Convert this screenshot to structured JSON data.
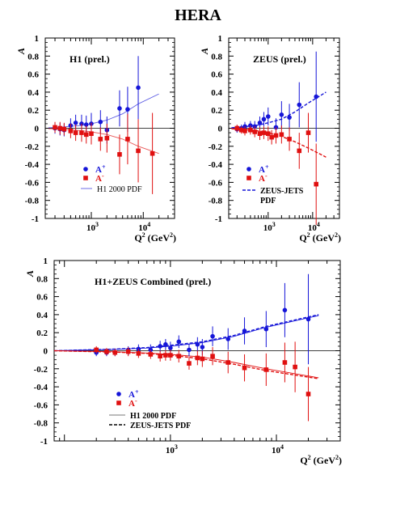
{
  "title": "HERA",
  "colors": {
    "a_plus": "#1515d8",
    "a_minus": "#e01010",
    "axis": "#000000",
    "zero": "#000000"
  },
  "charts": [
    {
      "id": "h1",
      "label": "H1 (prel.)",
      "ylabel": "A",
      "xlabel_base": "Q",
      "xlabel_sup": "2",
      "xlabel_unit": " (GeV",
      "xlabel_close": ")",
      "yticks": [
        "1",
        "0.8",
        "0.6",
        "0.4",
        "0.2",
        "0",
        "-0.2",
        "-0.4",
        "-0.6",
        "-0.8",
        "-1"
      ],
      "xtick_base": "10",
      "xtick_exps": [
        "3",
        "4"
      ],
      "legend": {
        "a_plus_base": "A",
        "a_plus_sup": "+",
        "a_minus_base": "A",
        "a_minus_sup": "-",
        "pdf1": "H1 2000 PDF"
      }
    },
    {
      "id": "zeus",
      "label": "ZEUS (prel.)",
      "ylabel": "A",
      "xlabel_base": "Q",
      "xlabel_sup": "2",
      "xlabel_unit": " (GeV",
      "xlabel_close": ")",
      "yticks": [
        "1",
        "0.8",
        "0.6",
        "0.4",
        "0.2",
        "0",
        "-0.2",
        "-0.4",
        "-0.6",
        "-0.8",
        "-1"
      ],
      "xtick_base": "10",
      "xtick_exps": [
        "3",
        "4"
      ],
      "legend": {
        "a_plus_base": "A",
        "a_plus_sup": "+",
        "a_minus_base": "A",
        "a_minus_sup": "-",
        "pdf1": "ZEUS-JETS",
        "pdf1b": "PDF"
      }
    },
    {
      "id": "combined",
      "label": "H1+ZEUS Combined (prel.)",
      "ylabel": "A",
      "xlabel_base": "Q",
      "xlabel_sup": "2",
      "xlabel_unit": " (GeV",
      "xlabel_close": ")",
      "yticks": [
        "1",
        "0.8",
        "0.6",
        "0.4",
        "0.2",
        "0",
        "-0.2",
        "-0.4",
        "-0.6",
        "-0.8",
        "-1"
      ],
      "xtick_base": "10",
      "xtick_exps": [
        "3",
        "4"
      ],
      "legend": {
        "a_plus_base": "A",
        "a_plus_sup": "+",
        "a_minus_base": "A",
        "a_minus_sup": "-",
        "pdf1": "H1 2000 PDF",
        "pdf2": "ZEUS-JETS PDF"
      }
    }
  ],
  "chart_data": [
    {
      "type": "scatter",
      "title": "H1 (prel.)",
      "xlabel": "Q² (GeV²)",
      "ylabel": "A",
      "xscale": "log",
      "xlim": [
        130,
        40000
      ],
      "ylim": [
        -1,
        1
      ],
      "series": [
        {
          "name": "A+",
          "points": [
            {
              "x": 200,
              "y": 0.0,
              "e": 0.06
            },
            {
              "x": 250,
              "y": -0.01,
              "e": 0.07
            },
            {
              "x": 300,
              "y": -0.02,
              "e": 0.07
            },
            {
              "x": 400,
              "y": 0.03,
              "e": 0.08
            },
            {
              "x": 500,
              "y": 0.06,
              "e": 0.09
            },
            {
              "x": 650,
              "y": 0.05,
              "e": 0.1
            },
            {
              "x": 800,
              "y": 0.04,
              "e": 0.1
            },
            {
              "x": 1000,
              "y": 0.05,
              "e": 0.12
            },
            {
              "x": 1500,
              "y": 0.07,
              "e": 0.13
            },
            {
              "x": 2000,
              "y": -0.02,
              "e": 0.15
            },
            {
              "x": 3500,
              "y": 0.22,
              "e": 0.2
            },
            {
              "x": 5000,
              "y": 0.21,
              "e": 0.25
            },
            {
              "x": 8000,
              "y": 0.45,
              "e": 0.35
            }
          ]
        },
        {
          "name": "A-",
          "points": [
            {
              "x": 200,
              "y": 0.01,
              "e": 0.06
            },
            {
              "x": 250,
              "y": 0.0,
              "e": 0.07
            },
            {
              "x": 300,
              "y": -0.01,
              "e": 0.07
            },
            {
              "x": 400,
              "y": -0.03,
              "e": 0.08
            },
            {
              "x": 500,
              "y": -0.05,
              "e": 0.09
            },
            {
              "x": 650,
              "y": -0.05,
              "e": 0.1
            },
            {
              "x": 800,
              "y": -0.07,
              "e": 0.1
            },
            {
              "x": 1000,
              "y": -0.06,
              "e": 0.12
            },
            {
              "x": 1500,
              "y": -0.12,
              "e": 0.13
            },
            {
              "x": 2000,
              "y": -0.11,
              "e": 0.16
            },
            {
              "x": 3500,
              "y": -0.29,
              "e": 0.22
            },
            {
              "x": 5000,
              "y": -0.12,
              "e": 0.28
            },
            {
              "x": 8000,
              "y": -0.25,
              "e": 0.35
            },
            {
              "x": 15000,
              "y": -0.28,
              "e": 0.45
            }
          ]
        },
        {
          "name": "H1 2000 PDF",
          "curve": [
            {
              "x": 150,
              "y": 0.005
            },
            {
              "x": 300,
              "y": 0.015
            },
            {
              "x": 600,
              "y": 0.03
            },
            {
              "x": 1000,
              "y": 0.05
            },
            {
              "x": 2000,
              "y": 0.09
            },
            {
              "x": 4000,
              "y": 0.16
            },
            {
              "x": 8000,
              "y": 0.27
            },
            {
              "x": 20000,
              "y": 0.38
            }
          ]
        },
        {
          "name": "H1 2000 PDF (A-)",
          "curve": [
            {
              "x": 150,
              "y": -0.005
            },
            {
              "x": 300,
              "y": -0.012
            },
            {
              "x": 600,
              "y": -0.025
            },
            {
              "x": 1000,
              "y": -0.04
            },
            {
              "x": 2000,
              "y": -0.07
            },
            {
              "x": 4000,
              "y": -0.12
            },
            {
              "x": 8000,
              "y": -0.2
            },
            {
              "x": 20000,
              "y": -0.28
            }
          ]
        }
      ]
    },
    {
      "type": "scatter",
      "title": "ZEUS (prel.)",
      "xlabel": "Q² (GeV²)",
      "ylabel": "A",
      "xscale": "log",
      "xlim": [
        130,
        40000
      ],
      "ylim": [
        -1,
        1
      ],
      "series": [
        {
          "name": "A+",
          "points": [
            {
              "x": 200,
              "y": -0.01,
              "e": 0.04
            },
            {
              "x": 250,
              "y": 0.0,
              "e": 0.04
            },
            {
              "x": 300,
              "y": 0.02,
              "e": 0.05
            },
            {
              "x": 400,
              "y": 0.03,
              "e": 0.05
            },
            {
              "x": 500,
              "y": 0.02,
              "e": 0.06
            },
            {
              "x": 650,
              "y": 0.06,
              "e": 0.07
            },
            {
              "x": 800,
              "y": 0.1,
              "e": 0.08
            },
            {
              "x": 1000,
              "y": 0.13,
              "e": 0.1
            },
            {
              "x": 1500,
              "y": 0.01,
              "e": 0.1
            },
            {
              "x": 2000,
              "y": 0.15,
              "e": 0.15
            },
            {
              "x": 3000,
              "y": 0.12,
              "e": 0.15
            },
            {
              "x": 5000,
              "y": 0.26,
              "e": 0.25
            },
            {
              "x": 12000,
              "y": 0.35,
              "e": 0.5
            }
          ]
        },
        {
          "name": "A-",
          "points": [
            {
              "x": 200,
              "y": 0.0,
              "e": 0.04
            },
            {
              "x": 250,
              "y": -0.02,
              "e": 0.04
            },
            {
              "x": 300,
              "y": -0.03,
              "e": 0.05
            },
            {
              "x": 400,
              "y": -0.02,
              "e": 0.05
            },
            {
              "x": 500,
              "y": -0.04,
              "e": 0.06
            },
            {
              "x": 650,
              "y": -0.06,
              "e": 0.07
            },
            {
              "x": 800,
              "y": -0.05,
              "e": 0.07
            },
            {
              "x": 1000,
              "y": -0.06,
              "e": 0.08
            },
            {
              "x": 1200,
              "y": -0.1,
              "e": 0.08
            },
            {
              "x": 1500,
              "y": -0.08,
              "e": 0.09
            },
            {
              "x": 2000,
              "y": -0.07,
              "e": 0.1
            },
            {
              "x": 3000,
              "y": -0.12,
              "e": 0.13
            },
            {
              "x": 5000,
              "y": -0.25,
              "e": 0.2
            },
            {
              "x": 8000,
              "y": -0.05,
              "e": 0.22
            },
            {
              "x": 12000,
              "y": -0.62,
              "e": 0.45
            }
          ]
        },
        {
          "name": "ZEUS-JETS PDF",
          "curve": [
            {
              "x": 150,
              "y": 0.005
            },
            {
              "x": 300,
              "y": 0.018
            },
            {
              "x": 600,
              "y": 0.035
            },
            {
              "x": 1000,
              "y": 0.06
            },
            {
              "x": 2000,
              "y": 0.1
            },
            {
              "x": 4000,
              "y": 0.18
            },
            {
              "x": 8000,
              "y": 0.28
            },
            {
              "x": 20000,
              "y": 0.4
            }
          ]
        },
        {
          "name": "ZEUS-JETS PDF (A-)",
          "curve": [
            {
              "x": 150,
              "y": -0.005
            },
            {
              "x": 300,
              "y": -0.015
            },
            {
              "x": 600,
              "y": -0.03
            },
            {
              "x": 1000,
              "y": -0.05
            },
            {
              "x": 2000,
              "y": -0.09
            },
            {
              "x": 4000,
              "y": -0.15
            },
            {
              "x": 8000,
              "y": -0.22
            },
            {
              "x": 20000,
              "y": -0.32
            }
          ]
        }
      ]
    },
    {
      "type": "scatter",
      "title": "H1+ZEUS Combined (prel.)",
      "xlabel": "Q² (GeV²)",
      "ylabel": "A",
      "xscale": "log",
      "xlim": [
        80,
        40000
      ],
      "ylim": [
        -1,
        1
      ],
      "series": [
        {
          "name": "A+",
          "points": [
            {
              "x": 200,
              "y": -0.02,
              "e": 0.04
            },
            {
              "x": 250,
              "y": -0.02,
              "e": 0.04
            },
            {
              "x": 300,
              "y": -0.02,
              "e": 0.04
            },
            {
              "x": 400,
              "y": 0.0,
              "e": 0.05
            },
            {
              "x": 500,
              "y": 0.02,
              "e": 0.05
            },
            {
              "x": 650,
              "y": 0.01,
              "e": 0.06
            },
            {
              "x": 800,
              "y": 0.05,
              "e": 0.06
            },
            {
              "x": 900,
              "y": 0.07,
              "e": 0.06
            },
            {
              "x": 1000,
              "y": 0.03,
              "e": 0.07
            },
            {
              "x": 1200,
              "y": 0.1,
              "e": 0.07
            },
            {
              "x": 1500,
              "y": 0.01,
              "e": 0.07
            },
            {
              "x": 1800,
              "y": 0.07,
              "e": 0.08
            },
            {
              "x": 2000,
              "y": 0.04,
              "e": 0.09
            },
            {
              "x": 2500,
              "y": 0.16,
              "e": 0.11
            },
            {
              "x": 3500,
              "y": 0.13,
              "e": 0.12
            },
            {
              "x": 5000,
              "y": 0.22,
              "e": 0.15
            },
            {
              "x": 8000,
              "y": 0.24,
              "e": 0.2
            },
            {
              "x": 12000,
              "y": 0.45,
              "e": 0.3
            },
            {
              "x": 20000,
              "y": 0.35,
              "e": 0.5
            }
          ]
        },
        {
          "name": "A-",
          "points": [
            {
              "x": 200,
              "y": 0.01,
              "e": 0.04
            },
            {
              "x": 250,
              "y": -0.01,
              "e": 0.04
            },
            {
              "x": 300,
              "y": -0.02,
              "e": 0.04
            },
            {
              "x": 400,
              "y": -0.01,
              "e": 0.05
            },
            {
              "x": 500,
              "y": -0.03,
              "e": 0.05
            },
            {
              "x": 650,
              "y": -0.04,
              "e": 0.05
            },
            {
              "x": 800,
              "y": -0.06,
              "e": 0.06
            },
            {
              "x": 900,
              "y": -0.05,
              "e": 0.06
            },
            {
              "x": 1000,
              "y": -0.05,
              "e": 0.06
            },
            {
              "x": 1200,
              "y": -0.06,
              "e": 0.07
            },
            {
              "x": 1500,
              "y": -0.14,
              "e": 0.07
            },
            {
              "x": 1800,
              "y": -0.08,
              "e": 0.08
            },
            {
              "x": 2000,
              "y": -0.09,
              "e": 0.09
            },
            {
              "x": 2500,
              "y": -0.06,
              "e": 0.1
            },
            {
              "x": 3500,
              "y": -0.13,
              "e": 0.12
            },
            {
              "x": 5000,
              "y": -0.19,
              "e": 0.15
            },
            {
              "x": 8000,
              "y": -0.21,
              "e": 0.18
            },
            {
              "x": 12000,
              "y": -0.13,
              "e": 0.22
            },
            {
              "x": 15000,
              "y": -0.18,
              "e": 0.28
            },
            {
              "x": 20000,
              "y": -0.48,
              "e": 0.3
            }
          ]
        },
        {
          "name": "H1 2000 PDF",
          "curve": [
            {
              "x": 80,
              "y": 0.0
            },
            {
              "x": 300,
              "y": 0.015
            },
            {
              "x": 600,
              "y": 0.03
            },
            {
              "x": 1000,
              "y": 0.05
            },
            {
              "x": 2000,
              "y": 0.09
            },
            {
              "x": 4000,
              "y": 0.16
            },
            {
              "x": 8000,
              "y": 0.26
            },
            {
              "x": 25000,
              "y": 0.39
            }
          ]
        },
        {
          "name": "ZEUS-JETS PDF",
          "curve": [
            {
              "x": 80,
              "y": 0.0
            },
            {
              "x": 300,
              "y": 0.018
            },
            {
              "x": 600,
              "y": 0.035
            },
            {
              "x": 1000,
              "y": 0.06
            },
            {
              "x": 2000,
              "y": 0.1
            },
            {
              "x": 4000,
              "y": 0.17
            },
            {
              "x": 8000,
              "y": 0.27
            },
            {
              "x": 25000,
              "y": 0.4
            }
          ]
        },
        {
          "name": "H1 2000 PDF (A-)",
          "curve": [
            {
              "x": 80,
              "y": 0.0
            },
            {
              "x": 300,
              "y": -0.012
            },
            {
              "x": 600,
              "y": -0.025
            },
            {
              "x": 1000,
              "y": -0.04
            },
            {
              "x": 2000,
              "y": -0.07
            },
            {
              "x": 4000,
              "y": -0.13
            },
            {
              "x": 8000,
              "y": -0.2
            },
            {
              "x": 25000,
              "y": -0.3
            }
          ]
        },
        {
          "name": "ZEUS-JETS PDF (A-)",
          "curve": [
            {
              "x": 80,
              "y": 0.0
            },
            {
              "x": 300,
              "y": -0.015
            },
            {
              "x": 600,
              "y": -0.03
            },
            {
              "x": 1000,
              "y": -0.05
            },
            {
              "x": 2000,
              "y": -0.09
            },
            {
              "x": 4000,
              "y": -0.15
            },
            {
              "x": 8000,
              "y": -0.22
            },
            {
              "x": 25000,
              "y": -0.31
            }
          ]
        }
      ]
    }
  ]
}
